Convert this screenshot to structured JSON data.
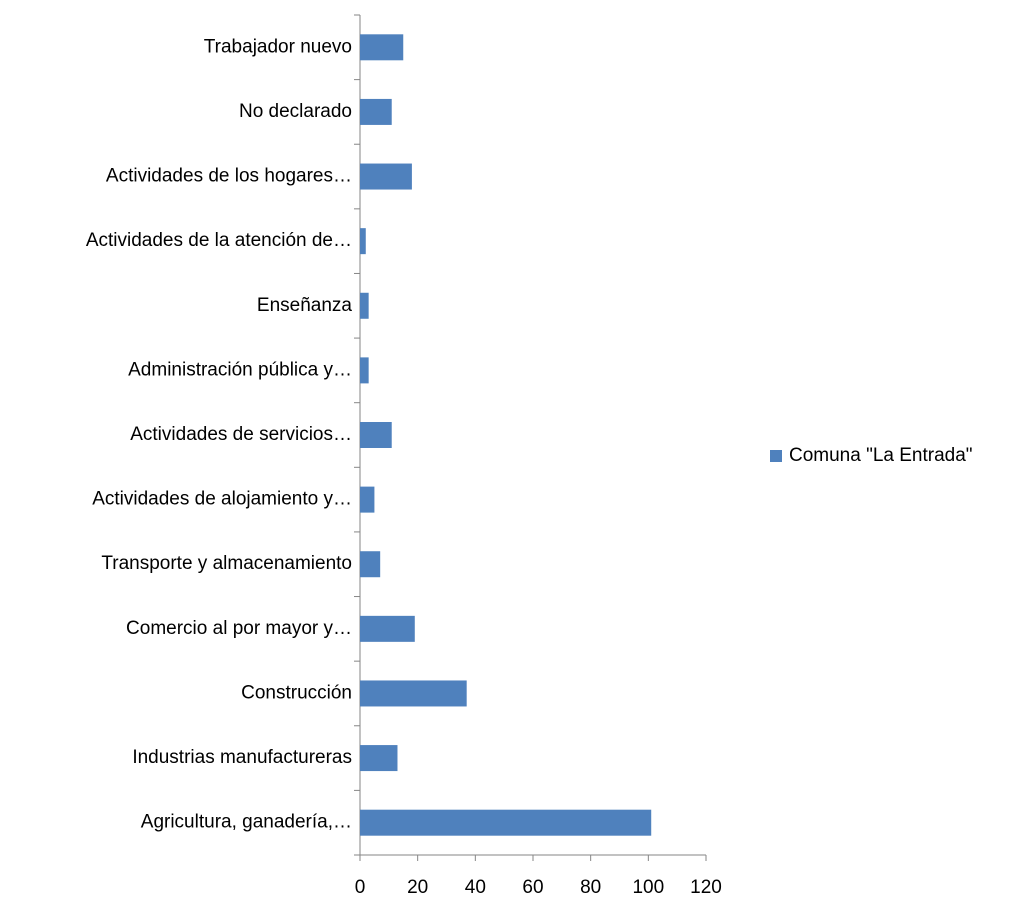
{
  "chart_data": {
    "type": "bar",
    "orientation": "horizontal",
    "categories": [
      "Agricultura, ganadería,…",
      "Industrias manufactureras",
      "Construcción",
      "Comercio al por mayor y…",
      "Transporte y almacenamiento",
      "Actividades de alojamiento y…",
      "Actividades de servicios…",
      "Administración pública y…",
      "Enseñanza",
      "Actividades de la atención de…",
      "Actividades de los hogares…",
      "No declarado",
      "Trabajador nuevo"
    ],
    "series": [
      {
        "name": "Comuna \"La Entrada\"",
        "color": "#4f81bd",
        "values": [
          101,
          13,
          37,
          19,
          7,
          5,
          11,
          3,
          3,
          2,
          18,
          11,
          15
        ]
      }
    ],
    "xlim": [
      0,
      120
    ],
    "xticks": [
      0,
      20,
      40,
      60,
      80,
      100,
      120
    ],
    "legend": "right"
  }
}
